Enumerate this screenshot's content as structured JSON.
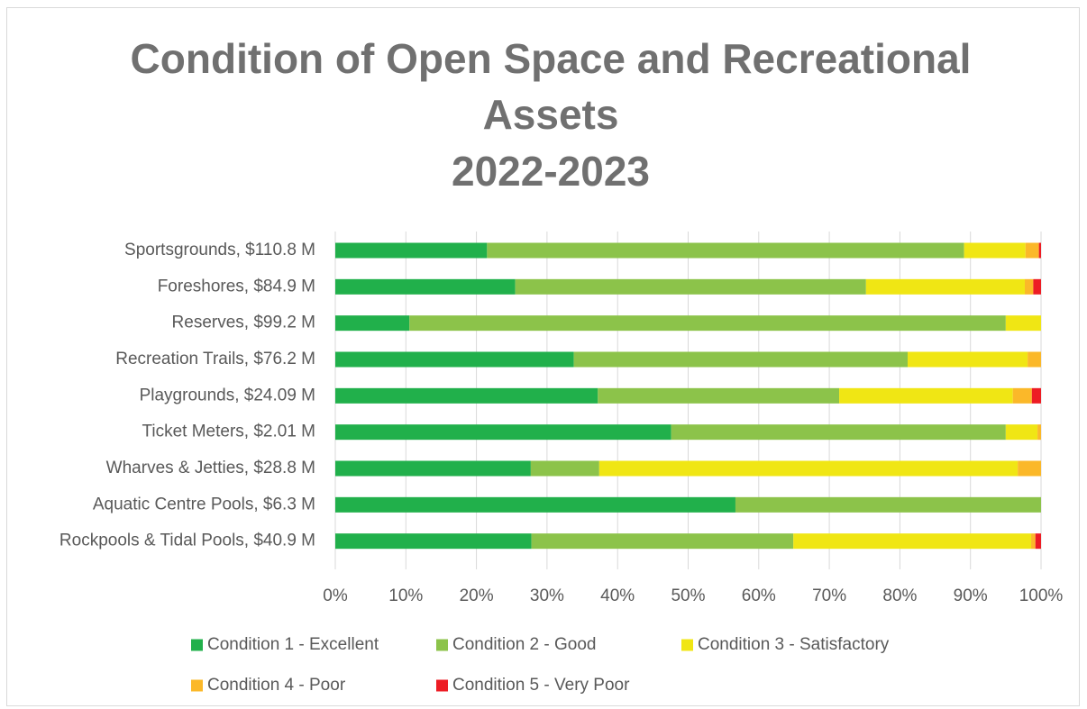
{
  "chart_data": {
    "type": "stacked_bar_horizontal",
    "title": "Condition of Open Space and Recreational Assets",
    "subtitle": "2022-2023",
    "categories": [
      "Sportsgrounds, $110.8 M",
      "Foreshores, $84.9 M",
      "Reserves, $99.2 M",
      "Recreation Trails, $76.2 M",
      "Playgrounds, $24.09 M",
      "Ticket Meters, $2.01 M",
      "Wharves & Jetties, $28.8 M",
      "Aquatic Centre Pools, $6.3 M",
      "Rockpools & Tidal Pools, $40.9 M"
    ],
    "series": [
      {
        "name": "Condition 1 - Excellent",
        "color": "#21b04b",
        "values": [
          21.5,
          25.5,
          10.5,
          33.8,
          37.2,
          47.6,
          27.7,
          56.7,
          27.8
        ]
      },
      {
        "name": "Condition 2 - Good",
        "color": "#8cc34a",
        "values": [
          67.6,
          49.7,
          84.5,
          47.3,
          34.2,
          47.4,
          9.7,
          43.3,
          37.1
        ]
      },
      {
        "name": "Condition 3 - Satisfactory",
        "color": "#f0e614",
        "values": [
          8.7,
          22.5,
          5.0,
          17.0,
          24.6,
          4.5,
          59.3,
          0,
          33.7
        ]
      },
      {
        "name": "Condition 4 - Poor",
        "color": "#fbb829",
        "values": [
          1.9,
          1.2,
          0,
          1.9,
          2.7,
          0.5,
          3.3,
          0,
          0.6
        ]
      },
      {
        "name": "Condition 5 - Very Poor",
        "color": "#ed1c24",
        "values": [
          0.3,
          1.1,
          0,
          0,
          1.3,
          0,
          0,
          0,
          0.8
        ]
      }
    ],
    "xlim": [
      0,
      100
    ],
    "xticks": [
      {
        "value": 0,
        "label": "0%"
      },
      {
        "value": 10,
        "label": "10%"
      },
      {
        "value": 20,
        "label": "20%"
      },
      {
        "value": 30,
        "label": "30%"
      },
      {
        "value": 40,
        "label": "40%"
      },
      {
        "value": 50,
        "label": "50%"
      },
      {
        "value": 60,
        "label": "60%"
      },
      {
        "value": 70,
        "label": "70%"
      },
      {
        "value": 80,
        "label": "80%"
      },
      {
        "value": 90,
        "label": "90%"
      },
      {
        "value": 100,
        "label": "100%"
      }
    ],
    "grid": true,
    "legend": "bottom"
  }
}
